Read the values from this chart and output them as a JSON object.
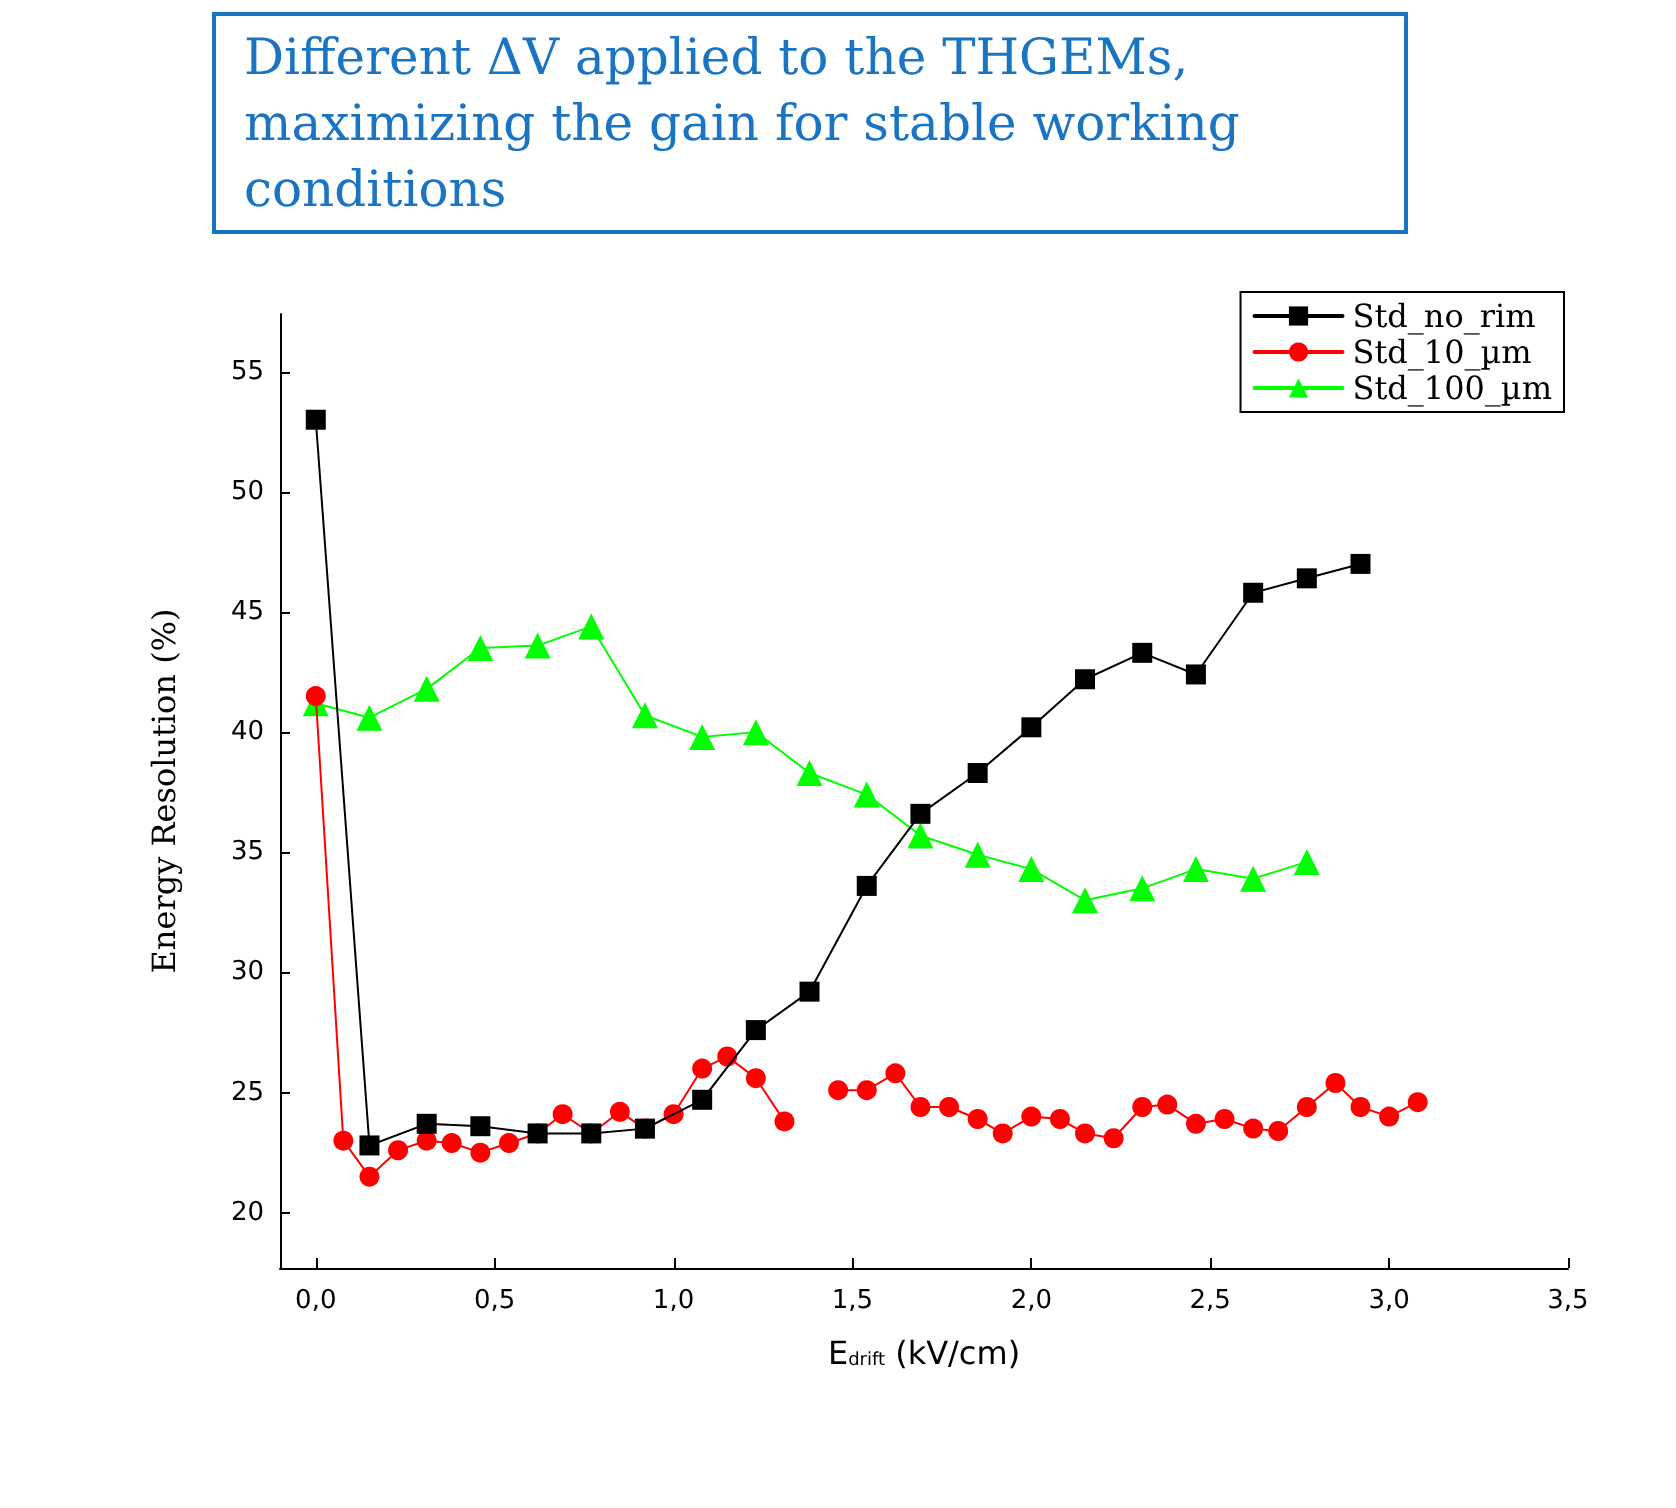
{
  "chart_data": {
    "type": "line",
    "title": "Different ΔV applied to the THGEMs, maximizing the gain for stable working conditions",
    "xlabel": "E$_{drift}$ (kV/cm)",
    "ylabel": "Energy Resolution (%)",
    "xlim": [
      -0.1,
      3.5
    ],
    "xticks": [
      {
        "value": 0,
        "label": "0,0"
      },
      {
        "value": 0.5,
        "label": "0,5"
      },
      {
        "value": 1,
        "label": "1,0"
      },
      {
        "value": 1.5,
        "label": "1,5"
      },
      {
        "value": 2,
        "label": "2,0"
      },
      {
        "value": 2.5,
        "label": "2,5"
      },
      {
        "value": 3,
        "label": "3,0"
      },
      {
        "value": 3.5,
        "label": "3,5"
      }
    ],
    "ylim": [
      17.7,
      57.4
    ],
    "yticks": [
      20,
      25,
      30,
      35,
      40,
      45,
      50,
      55
    ],
    "grid": false,
    "legend": "top right",
    "line_style": "solid",
    "series": [
      {
        "name": "Std_no_rim",
        "color": "#000000",
        "marker": "square",
        "x": [
          0,
          0.15,
          0.31,
          0.46,
          0.62,
          0.77,
          0.92,
          1.08,
          1.23,
          1.38,
          1.54,
          1.69,
          1.85,
          2.0,
          2.15,
          2.31,
          2.46,
          2.62,
          2.77,
          2.92
        ],
        "values": [
          53,
          22.8,
          23.7,
          23.6,
          23.3,
          23.3,
          23.5,
          24.7,
          27.6,
          29.2,
          33.6,
          36.6,
          38.3,
          40.2,
          42.2,
          43.3,
          42.4,
          45.8,
          46.4,
          47.0
        ]
      },
      {
        "name": "Std_10_µm",
        "color": "#ff0000",
        "marker": "circle",
        "x": [
          0,
          0.077,
          0.15,
          0.23,
          0.31,
          0.38,
          0.46,
          0.54,
          0.62,
          0.69,
          0.77,
          0.85,
          0.92,
          1.0,
          1.08,
          1.15,
          1.23,
          1.31,
          1.38,
          1.46,
          1.54,
          1.62,
          1.69,
          1.77,
          1.85,
          1.92,
          2.0,
          2.08,
          2.15,
          2.23,
          2.31,
          2.38,
          2.46,
          2.54,
          2.62,
          2.69,
          2.77,
          2.85,
          2.92,
          3.0,
          3.08
        ],
        "values": [
          41.5,
          23.0,
          21.5,
          22.6,
          23.0,
          22.9,
          22.5,
          22.9,
          23.3,
          24.1,
          23.3,
          24.2,
          23.5,
          24.1,
          26.0,
          26.5,
          25.6,
          23.8,
          null,
          25.1,
          25.1,
          25.8,
          24.4,
          24.4,
          23.9,
          23.3,
          24.0,
          23.9,
          23.3,
          23.1,
          24.4,
          24.5,
          23.7,
          23.9,
          23.5,
          23.4,
          24.4,
          25.4,
          24.4,
          24.0,
          24.6
        ]
      },
      {
        "name": "Std_100_µm",
        "color": "#00ff00",
        "marker": "triangle",
        "x": [
          0,
          0.15,
          0.31,
          0.46,
          0.62,
          0.77,
          0.92,
          1.08,
          1.23,
          1.38,
          1.54,
          1.69,
          1.85,
          2.0,
          2.15,
          2.31,
          2.46,
          2.62,
          2.77
        ],
        "values": [
          41.2,
          40.6,
          41.8,
          43.5,
          43.6,
          44.4,
          40.7,
          39.8,
          40.0,
          38.3,
          37.4,
          35.7,
          34.9,
          34.3,
          33.0,
          33.5,
          34.3,
          33.9,
          34.6
        ]
      }
    ]
  }
}
